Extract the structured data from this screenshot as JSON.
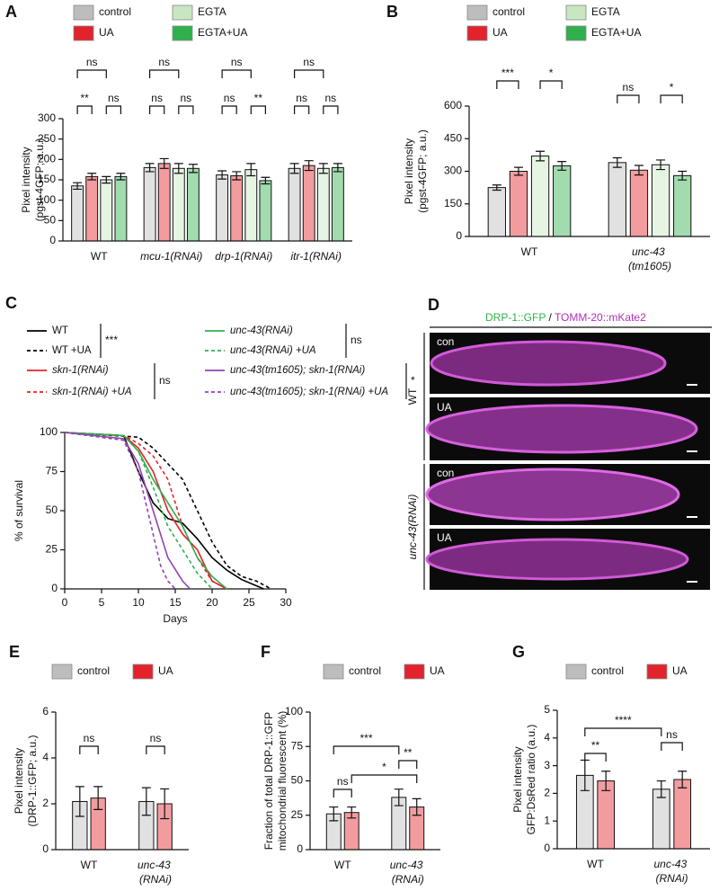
{
  "chart_data": [
    {
      "panel": "A",
      "type": "bar",
      "y_label": [
        "Pixel intensity",
        "(pgst-4GFP; a.u.)"
      ],
      "categories": [
        "WT",
        "mcu-1(RNAi)",
        "drp-1(RNAi)",
        "itr-1(RNAi)"
      ],
      "series": [
        {
          "name": "control",
          "color": "#bdbdbd",
          "values": [
            135,
            180,
            162,
            178
          ],
          "errors": [
            8,
            10,
            10,
            12
          ]
        },
        {
          "name": "UA",
          "color": "#e3232b",
          "values": [
            158,
            190,
            160,
            185
          ],
          "errors": [
            8,
            12,
            10,
            12
          ]
        },
        {
          "name": "EGTA",
          "color": "#c8e6c0",
          "values": [
            150,
            178,
            175,
            178
          ],
          "errors": [
            8,
            12,
            15,
            12
          ]
        },
        {
          "name": "EGTA+UA",
          "color": "#2fb04c",
          "values": [
            158,
            178,
            148,
            180
          ],
          "errors": [
            8,
            10,
            8,
            10
          ]
        }
      ],
      "ylim": [
        0,
        300
      ],
      "yticks": [
        0,
        50,
        100,
        150,
        200,
        250,
        300
      ],
      "annotations": [
        "ns",
        "**",
        "ns",
        "ns",
        "ns",
        "ns",
        "ns",
        "ns",
        "**",
        "ns",
        "ns",
        "ns"
      ]
    },
    {
      "panel": "B",
      "type": "bar",
      "y_label": [
        "Pixel intensity",
        "(pgst-4GFP; a.u.)"
      ],
      "categories": [
        "WT",
        "unc-43 (tm1605)"
      ],
      "series": [
        {
          "name": "control",
          "color": "#bdbdbd",
          "values": [
            225,
            340
          ],
          "errors": [
            12,
            22
          ]
        },
        {
          "name": "UA",
          "color": "#e3232b",
          "values": [
            300,
            305
          ],
          "errors": [
            18,
            22
          ]
        },
        {
          "name": "EGTA",
          "color": "#c8e6c0",
          "values": [
            370,
            330
          ],
          "errors": [
            22,
            22
          ]
        },
        {
          "name": "EGTA+UA",
          "color": "#2fb04c",
          "values": [
            325,
            280
          ],
          "errors": [
            20,
            20
          ]
        }
      ],
      "ylim": [
        0,
        600
      ],
      "yticks": [
        0,
        150,
        300,
        450,
        600
      ],
      "annotations": [
        "***",
        "*",
        "ns",
        "*"
      ]
    },
    {
      "panel": "C",
      "type": "line",
      "x_label": "Days",
      "y_label": "% of survival",
      "series": [
        {
          "name": "WT",
          "color": "#000000",
          "dashed": false,
          "x": [
            0,
            8,
            10,
            12,
            14,
            16,
            18,
            20,
            22,
            24,
            26,
            27
          ],
          "values": [
            100,
            98,
            75,
            55,
            45,
            42,
            32,
            20,
            12,
            6,
            2,
            0
          ]
        },
        {
          "name": "WT +UA",
          "color": "#000000",
          "dashed": true,
          "x": [
            0,
            10,
            12,
            14,
            16,
            18,
            20,
            22,
            24,
            26,
            28
          ],
          "values": [
            100,
            97,
            90,
            80,
            70,
            50,
            30,
            15,
            8,
            5,
            0
          ]
        },
        {
          "name": "skn-1(RNAi)",
          "color": "#e3232b",
          "dashed": false,
          "x": [
            0,
            8,
            10,
            12,
            14,
            16,
            18,
            20,
            22
          ],
          "values": [
            100,
            98,
            90,
            75,
            50,
            35,
            25,
            5,
            0
          ]
        },
        {
          "name": "skn-1(RNAi) +UA",
          "color": "#e3232b",
          "dashed": true,
          "x": [
            0,
            8,
            10,
            12,
            14,
            16,
            18,
            20,
            22
          ],
          "values": [
            100,
            98,
            93,
            85,
            70,
            40,
            20,
            5,
            0
          ]
        },
        {
          "name": "unc-43(RNAi)",
          "color": "#2fb04c",
          "dashed": false,
          "x": [
            0,
            8,
            10,
            12,
            14,
            16,
            18,
            20,
            22
          ],
          "values": [
            100,
            98,
            88,
            70,
            55,
            40,
            20,
            8,
            0
          ]
        },
        {
          "name": "unc-43(RNAi) +UA",
          "color": "#2fb04c",
          "dashed": true,
          "x": [
            0,
            8,
            10,
            12,
            14,
            16,
            18,
            20
          ],
          "values": [
            100,
            98,
            88,
            65,
            40,
            25,
            10,
            0
          ]
        },
        {
          "name": "unc-43(tm1605); skn-1(RNAi)",
          "color": "#8e44ad",
          "dashed": false,
          "x": [
            0,
            8,
            10,
            12,
            14,
            16,
            17
          ],
          "values": [
            100,
            96,
            80,
            50,
            20,
            5,
            0
          ]
        },
        {
          "name": "unc-43(tm1605); skn-1(RNAi) +UA",
          "color": "#8e44ad",
          "dashed": true,
          "x": [
            0,
            8,
            10,
            12,
            13,
            14,
            15
          ],
          "values": [
            100,
            95,
            75,
            35,
            15,
            5,
            0
          ]
        }
      ],
      "xlim": [
        0,
        30
      ],
      "xticks": [
        0,
        5,
        10,
        15,
        20,
        25,
        30
      ],
      "ylim": [
        0,
        100
      ],
      "yticks": [
        0,
        25,
        50,
        75,
        100
      ],
      "significance": [
        "***",
        "ns",
        "ns",
        "*"
      ]
    },
    {
      "panel": "E",
      "type": "bar",
      "y_label": [
        "Pixel intensity",
        "(DRP-1::GFP; a.u.)"
      ],
      "categories": [
        "WT",
        "unc-43 (RNAi)"
      ],
      "series": [
        {
          "name": "control",
          "color": "#bdbdbd",
          "values": [
            2.1,
            2.1
          ],
          "errors": [
            0.65,
            0.6
          ]
        },
        {
          "name": "UA",
          "color": "#e3232b",
          "values": [
            2.25,
            2.0
          ],
          "errors": [
            0.5,
            0.65
          ]
        }
      ],
      "ylim": [
        0,
        6
      ],
      "yticks": [
        0,
        2,
        4,
        6
      ],
      "annotations": [
        "ns",
        "ns"
      ]
    },
    {
      "panel": "F",
      "type": "bar",
      "y_label": [
        "Fraction of total DRP-1::GFP",
        "mitochondrial fluorescent (%)"
      ],
      "categories": [
        "WT",
        "unc-43 (RNAi)"
      ],
      "series": [
        {
          "name": "control",
          "color": "#bdbdbd",
          "values": [
            26,
            38
          ],
          "errors": [
            5,
            6
          ]
        },
        {
          "name": "UA",
          "color": "#e3232b",
          "values": [
            27,
            31
          ],
          "errors": [
            4,
            6
          ]
        }
      ],
      "ylim": [
        0,
        100
      ],
      "yticks": [
        0,
        25,
        50,
        75,
        100
      ],
      "annotations": [
        "ns",
        "***",
        "*",
        "**"
      ]
    },
    {
      "panel": "G",
      "type": "bar",
      "y_label": [
        "Pixel intensity",
        "GFP:DsRed ratio (a.u.)"
      ],
      "categories": [
        "WT",
        "unc-43 (RNAi)"
      ],
      "series": [
        {
          "name": "control",
          "color": "#bdbdbd",
          "values": [
            2.65,
            2.15
          ],
          "errors": [
            0.55,
            0.3
          ]
        },
        {
          "name": "UA",
          "color": "#e3232b",
          "values": [
            2.45,
            2.5
          ],
          "errors": [
            0.35,
            0.3
          ]
        }
      ],
      "ylim": [
        0,
        5
      ],
      "yticks": [
        0,
        1,
        2,
        3,
        4,
        5
      ],
      "annotations": [
        "**",
        "****",
        "ns"
      ]
    }
  ],
  "image_panel": {
    "panel": "D",
    "title_parts": [
      "DRP-1::GFP",
      "/",
      "TOMM-20::mKate2"
    ],
    "image_labels": [
      "con",
      "UA",
      "con",
      "UA"
    ],
    "row_labels": [
      "WT",
      "unc-43(RNAi)"
    ]
  }
}
